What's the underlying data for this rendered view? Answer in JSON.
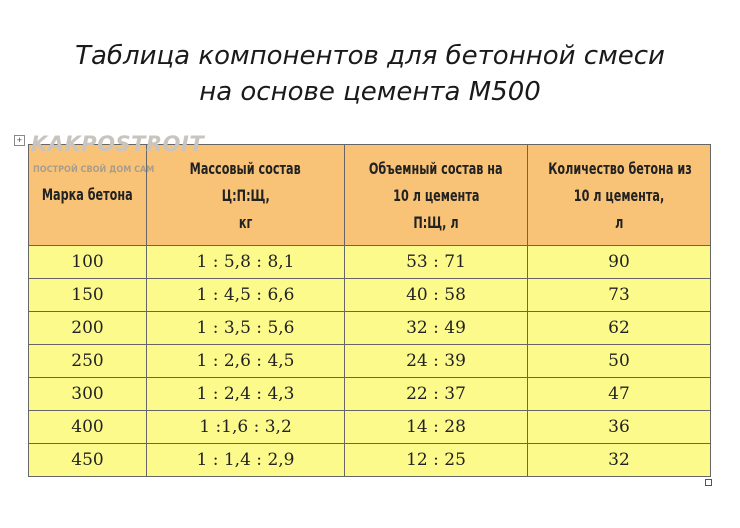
{
  "title": {
    "line1": "Таблица компонентов для бетонной смеси",
    "line2": "на основе цемента М500"
  },
  "watermark": {
    "brand": "KAKPOSTROIT",
    "tagline": "ПОСТРОЙ СВОЙ ДОМ САМ"
  },
  "table": {
    "headers": [
      [
        "Марка бетона"
      ],
      [
        "Массовый состав",
        "Ц:П:Щ,",
        "кг"
      ],
      [
        "Объемный состав на",
        "10 л цемента",
        "П:Щ, л"
      ],
      [
        "Количество бетона из",
        "10 л цемента,",
        "л"
      ]
    ],
    "rows": [
      [
        "100",
        "1 : 5,8  : 8,1",
        "53 : 71",
        "90"
      ],
      [
        "150",
        "1 : 4,5 : 6,6",
        "40 : 58",
        "73"
      ],
      [
        "200",
        "1 : 3,5  : 5,6",
        "32 : 49",
        "62"
      ],
      [
        "250",
        "1 : 2,6 : 4,5",
        "24 : 39",
        "50"
      ],
      [
        "300",
        "1 : 2,4  : 4,3",
        "22 : 37",
        "47"
      ],
      [
        "400",
        "1 :1,6 : 3,2",
        "14 : 28",
        "36"
      ],
      [
        "450",
        "1 : 1,4 : 2,9",
        "12 : 25",
        "32"
      ]
    ]
  },
  "colors": {
    "header_bg": "#f9c377",
    "row_bg": "#fdfa8c",
    "border": "#666666"
  }
}
